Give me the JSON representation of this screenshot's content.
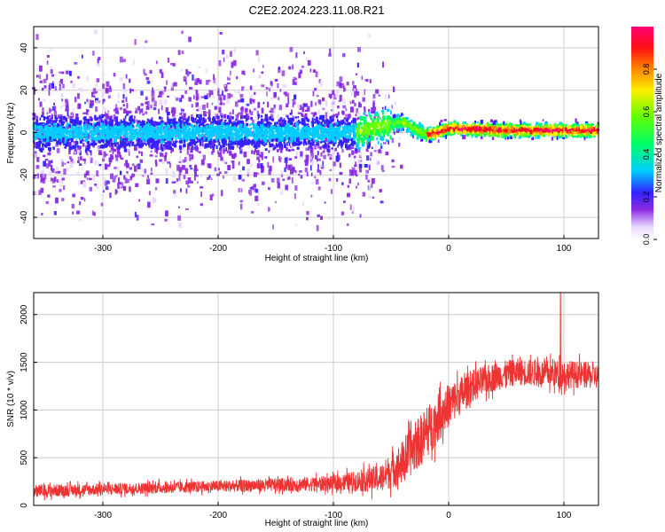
{
  "title": "C2E2.2024.223.11.08.R21",
  "colors": {
    "snr_line": "#ee3333",
    "axis": "#000000",
    "grid": "#cccccc",
    "background": "#ffffff"
  },
  "chart_data": [
    {
      "type": "heatmap",
      "title": "C2E2.2024.223.11.08.R21",
      "xlabel": "Height of straight line (km)",
      "ylabel": "Frequency (Hz)",
      "xlim": [
        -360,
        130
      ],
      "ylim": [
        -50,
        50
      ],
      "x_ticks": [
        -300,
        -200,
        -100,
        0,
        100
      ],
      "y_ticks": [
        -40,
        -20,
        0,
        20,
        40
      ],
      "grid": true,
      "colorbar": {
        "label": "Normalized spectral amplitude",
        "range": [
          0,
          1
        ],
        "ticks": [
          0.0,
          0.2,
          0.4,
          0.6,
          0.8
        ],
        "tick_labels": [
          "0.0",
          "0.2",
          "0.4",
          "0.6",
          "0.8"
        ],
        "colormap": "rainbow (white-purple-blue-cyan-green-yellow-red-magenta)"
      },
      "ridge": {
        "x": [
          -360,
          -80,
          -60,
          -40,
          -30,
          -20,
          -10,
          0,
          50,
          130
        ],
        "freq": [
          0,
          0,
          3,
          5,
          2,
          -1,
          0,
          2,
          1,
          1
        ]
      }
    },
    {
      "type": "line",
      "xlabel": "Height of straight line (km)",
      "ylabel": "SNR (10 * v/v)",
      "xlim": [
        -360,
        130
      ],
      "ylim": [
        0,
        2230
      ],
      "x_ticks": [
        -300,
        -200,
        -100,
        0,
        100
      ],
      "y_ticks": [
        0,
        500,
        1000,
        1500,
        2000
      ],
      "grid": true,
      "series": [
        {
          "envelope_x": [
            -360,
            -300,
            -200,
            -100,
            -60,
            -40,
            -20,
            0,
            20,
            40,
            60,
            80,
            100,
            130
          ],
          "envelope_y": [
            150,
            170,
            200,
            230,
            280,
            450,
            750,
            1050,
            1250,
            1350,
            1400,
            1380,
            1380,
            1350
          ],
          "noise": [
            70,
            60,
            60,
            80,
            140,
            230,
            280,
            230,
            170,
            150,
            140,
            140,
            150,
            130
          ],
          "spike_x": 97,
          "spike_y": 2230
        }
      ]
    }
  ]
}
